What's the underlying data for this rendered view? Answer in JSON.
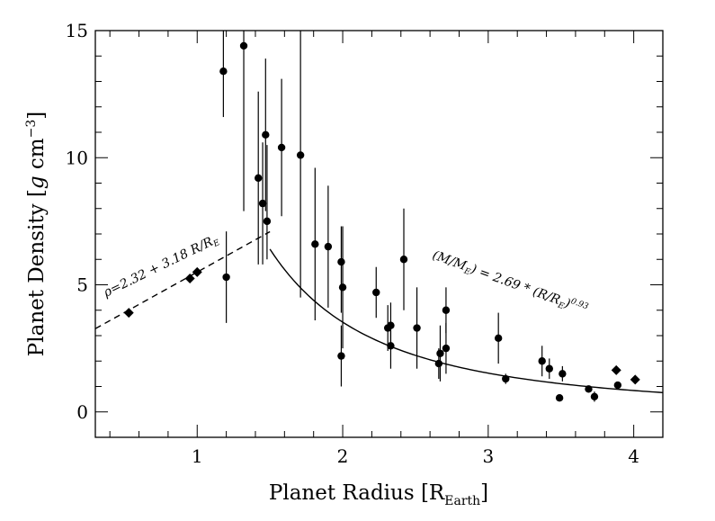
{
  "chart_data": {
    "type": "scatter",
    "title": "",
    "xlabel": {
      "main": "Planet Radius [R",
      "sub": "Earth",
      "end": "]"
    },
    "ylabel": {
      "main": "Planet Density [",
      "italic": "g",
      "unit": " cm",
      "sup": "−3",
      "end": "]"
    },
    "xlim": [
      0.3,
      4.2
    ],
    "ylim": [
      -1,
      15
    ],
    "x_ticks": [
      1,
      2,
      3,
      4
    ],
    "y_ticks": [
      0,
      5,
      10,
      15
    ],
    "x_ticks_labels": [
      "1",
      "2",
      "3",
      "4"
    ],
    "y_ticks_labels": [
      "0",
      "5",
      "10",
      "15"
    ],
    "series": [
      {
        "name": "planets",
        "marker": "circle",
        "points": [
          {
            "x": 1.18,
            "y": 13.4,
            "err": [
              1.8,
              8.3
            ]
          },
          {
            "x": 1.2,
            "y": 5.3,
            "err": [
              1.8,
              1.8
            ]
          },
          {
            "x": 1.32,
            "y": 14.4,
            "err": [
              6.5,
              2.2
            ]
          },
          {
            "x": 1.42,
            "y": 9.2,
            "err": [
              3.4,
              3.4
            ]
          },
          {
            "x": 1.45,
            "y": 8.2,
            "err": [
              2.4,
              2.4
            ]
          },
          {
            "x": 1.47,
            "y": 10.9,
            "err": [
              3.0,
              3.0
            ]
          },
          {
            "x": 1.48,
            "y": 7.5,
            "err": [
              1.5,
              3.0
            ]
          },
          {
            "x": 1.58,
            "y": 10.4,
            "err": [
              2.7,
              2.7
            ]
          },
          {
            "x": 1.71,
            "y": 10.1,
            "err": [
              5.6,
              6.3
            ]
          },
          {
            "x": 1.81,
            "y": 6.6,
            "err": [
              3.0,
              3.0
            ]
          },
          {
            "x": 1.9,
            "y": 6.5,
            "err": [
              2.4,
              2.4
            ]
          },
          {
            "x": 1.99,
            "y": 5.9,
            "err": [
              2.0,
              1.4
            ]
          },
          {
            "x": 2.0,
            "y": 4.9,
            "err": [
              2.4,
              2.4
            ]
          },
          {
            "x": 1.99,
            "y": 2.2,
            "err": [
              1.2,
              1.2
            ]
          },
          {
            "x": 2.23,
            "y": 4.7,
            "err": [
              1.0,
              1.0
            ]
          },
          {
            "x": 2.31,
            "y": 3.3,
            "err": [
              0.9,
              0.9
            ]
          },
          {
            "x": 2.33,
            "y": 3.4,
            "err": [
              0.9,
              0.9
            ]
          },
          {
            "x": 2.33,
            "y": 2.6,
            "err": [
              0.9,
              0.9
            ]
          },
          {
            "x": 2.42,
            "y": 6.0,
            "err": [
              2.0,
              2.0
            ]
          },
          {
            "x": 2.51,
            "y": 3.3,
            "err": [
              1.6,
              1.6
            ]
          },
          {
            "x": 2.66,
            "y": 1.9,
            "err": [
              0.6,
              0.6
            ]
          },
          {
            "x": 2.67,
            "y": 2.3,
            "err": [
              1.1,
              1.1
            ]
          },
          {
            "x": 2.71,
            "y": 4.0,
            "err": [
              0.9,
              0.9
            ]
          },
          {
            "x": 2.71,
            "y": 2.5,
            "err": [
              1.0,
              1.0
            ]
          },
          {
            "x": 3.07,
            "y": 2.9,
            "err": [
              1.0,
              1.0
            ]
          },
          {
            "x": 3.12,
            "y": 1.3,
            "err": [
              0.2,
              0.2
            ]
          },
          {
            "x": 3.37,
            "y": 2.0,
            "err": [
              0.6,
              0.6
            ]
          },
          {
            "x": 3.42,
            "y": 1.7,
            "err": [
              0.4,
              0.4
            ]
          },
          {
            "x": 3.49,
            "y": 0.55,
            "err": [
              0.1,
              0.1
            ]
          },
          {
            "x": 3.51,
            "y": 1.5,
            "err": [
              0.3,
              0.3
            ]
          },
          {
            "x": 3.69,
            "y": 0.9,
            "err": [
              0.1,
              0.1
            ]
          },
          {
            "x": 3.73,
            "y": 0.6,
            "err": [
              0.2,
              0.2
            ]
          },
          {
            "x": 3.89,
            "y": 1.05,
            "err": [
              0,
              0
            ]
          }
        ]
      },
      {
        "name": "solar-system",
        "marker": "diamond",
        "points": [
          {
            "x": 0.53,
            "y": 3.9
          },
          {
            "x": 0.95,
            "y": 5.25
          },
          {
            "x": 1.0,
            "y": 5.5
          },
          {
            "x": 3.88,
            "y": 1.64
          },
          {
            "x": 4.01,
            "y": 1.27
          }
        ]
      }
    ],
    "fits": [
      {
        "name": "rocky-fit",
        "style": "dashed",
        "equation": "rho = 2.32 + 3.18 R/R_E",
        "x_range": [
          0.3,
          1.5
        ],
        "label": {
          "pre": "ρ=2.32 + 3.18 R/R",
          "sub": "E"
        }
      },
      {
        "name": "gas-fit",
        "style": "solid",
        "equation": "M/M_E = 2.69 * (R/R_E)^0.93",
        "x_range": [
          1.5,
          4.2
        ],
        "label": {
          "a": "(M/M",
          "a_sub": "E",
          "b": ") = 2.69 * (R/R",
          "b_sub": "E",
          "c": ")",
          "c_sup": "0.93"
        }
      }
    ]
  }
}
